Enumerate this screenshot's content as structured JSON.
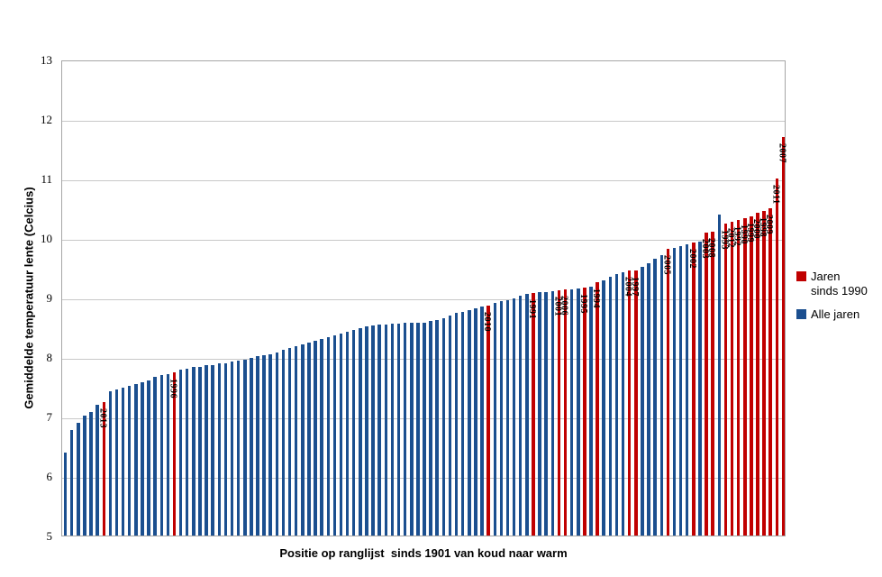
{
  "chart_data": {
    "type": "bar",
    "title": "",
    "xlabel": "Positie op ranglijst  sinds 1901 van koud naar warm",
    "ylabel": "Gemiddelde temperatuur lente (Celcius)",
    "ylim": [
      5,
      13
    ],
    "y_ticks": [
      5,
      6,
      7,
      8,
      9,
      10,
      11,
      12,
      13
    ],
    "gridlines_on": true,
    "legend_position": "right",
    "x_unit": "ranking position 1..113 (years 1901-2013 sorted cold to warm)",
    "values": [
      6.4,
      6.78,
      6.89,
      7.02,
      7.08,
      7.2,
      7.25,
      7.42,
      7.45,
      7.49,
      7.52,
      7.54,
      7.58,
      7.61,
      7.66,
      7.7,
      7.72,
      7.75,
      7.79,
      7.81,
      7.83,
      7.84,
      7.86,
      7.87,
      7.89,
      7.9,
      7.92,
      7.94,
      7.96,
      7.98,
      8.01,
      8.03,
      8.05,
      8.08,
      8.12,
      8.15,
      8.19,
      8.22,
      8.25,
      8.27,
      8.3,
      8.33,
      8.37,
      8.4,
      8.43,
      8.46,
      8.48,
      8.51,
      8.53,
      8.54,
      8.55,
      8.56,
      8.56,
      8.57,
      8.57,
      8.57,
      8.58,
      8.6,
      8.62,
      8.65,
      8.7,
      8.74,
      8.76,
      8.79,
      8.82,
      8.85,
      8.87,
      8.91,
      8.94,
      8.96,
      8.98,
      9.03,
      9.06,
      9.08,
      9.09,
      9.09,
      9.1,
      9.12,
      9.13,
      9.14,
      9.15,
      9.17,
      9.19,
      9.26,
      9.29,
      9.35,
      9.4,
      9.43,
      9.45,
      9.46,
      9.51,
      9.58,
      9.65,
      9.71,
      9.82,
      9.84,
      9.86,
      9.89,
      9.92,
      9.94,
      10.09,
      10.11,
      10.4,
      10.25,
      10.28,
      10.31,
      10.34,
      10.37,
      10.42,
      10.45,
      10.5,
      11.0,
      11.7
    ],
    "red_bars": [
      {
        "pos": 7,
        "year": "2013"
      },
      {
        "pos": 18,
        "year": "1996"
      },
      {
        "pos": 67,
        "year": "2010"
      },
      {
        "pos": 74,
        "year": "1991"
      },
      {
        "pos": 78,
        "year": "2001"
      },
      {
        "pos": 79,
        "year": "2006"
      },
      {
        "pos": 82,
        "year": "1995"
      },
      {
        "pos": 84,
        "year": "1994"
      },
      {
        "pos": 89,
        "year": "2004"
      },
      {
        "pos": 90,
        "year": "1997"
      },
      {
        "pos": 95,
        "year": "2005"
      },
      {
        "pos": 99,
        "year": "2002"
      },
      {
        "pos": 101,
        "year": "2003"
      },
      {
        "pos": 102,
        "year": "2008"
      },
      {
        "pos": 104,
        "year": "1993"
      },
      {
        "pos": 105,
        "year": "2012"
      },
      {
        "pos": 106,
        "year": "1992"
      },
      {
        "pos": 107,
        "year": "1990"
      },
      {
        "pos": 108,
        "year": "1999"
      },
      {
        "pos": 109,
        "year": "2000"
      },
      {
        "pos": 110,
        "year": "1998"
      },
      {
        "pos": 111,
        "year": "2009"
      },
      {
        "pos": 112,
        "year": "2011"
      },
      {
        "pos": 113,
        "year": "2007"
      }
    ]
  },
  "legend": {
    "items": [
      {
        "label": "Jaren sinds 1990",
        "color": "#c00000"
      },
      {
        "label": "Alle jaren",
        "color": "#1b4f8f"
      }
    ]
  },
  "colors": {
    "red_bar": "#c00000",
    "blue_bar": "#1b4f8f",
    "gridline": "#c8c8c8",
    "plot_border": "#a6a6a6",
    "background": "#ffffff"
  }
}
